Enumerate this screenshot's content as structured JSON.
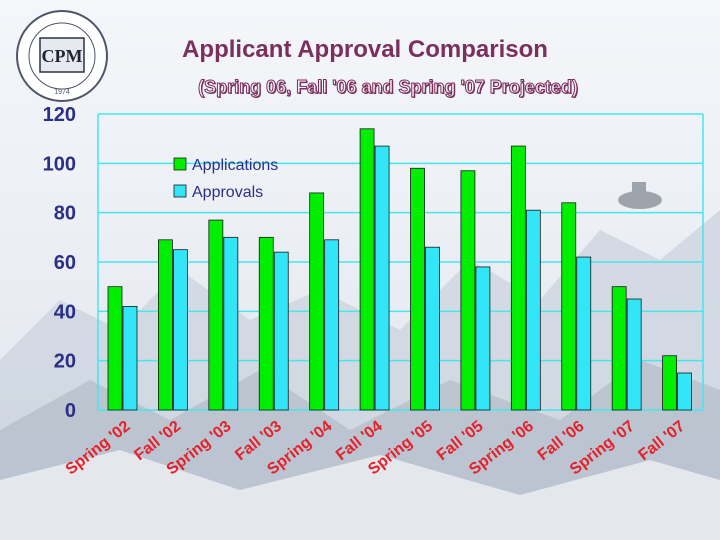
{
  "page": {
    "title": "Applicant Approval Comparison",
    "subtitle": "(Spring 06, Fall '06 and Spring '07 Projected)"
  },
  "logo": {
    "center_text": "CPM",
    "ring_text": "INSTITUTE · ICPM · CERTIFIED · PROFESSIONAL · MANAGERS",
    "year": "1974"
  },
  "colors": {
    "applications": "#00ee00",
    "approvals": "#33e6f7",
    "grid": "#44e6f0",
    "axis_text": "#2b2f87",
    "category_text": "#e3222b",
    "title": "#7a2f5d"
  },
  "chart_data": {
    "type": "bar",
    "categories": [
      "Spring '02",
      "Fall '02",
      "Spring '03",
      "Fall '03",
      "Spring '04",
      "Fall '04",
      "Spring '05",
      "Fall '05",
      "Spring '06",
      "Fall '06",
      "Spring '07",
      "Fall '07"
    ],
    "series": [
      {
        "name": "Applications",
        "values": [
          50,
          69,
          77,
          70,
          88,
          114,
          98,
          97,
          107,
          84,
          50,
          22
        ]
      },
      {
        "name": "Approvals",
        "values": [
          42,
          65,
          70,
          64,
          69,
          107,
          66,
          58,
          81,
          62,
          45,
          15
        ]
      }
    ],
    "ylim": [
      0,
      120
    ],
    "yticks": [
      "0",
      "20",
      "40",
      "60",
      "80",
      "100",
      "120"
    ],
    "grid": true,
    "legend_position": "top-left"
  }
}
